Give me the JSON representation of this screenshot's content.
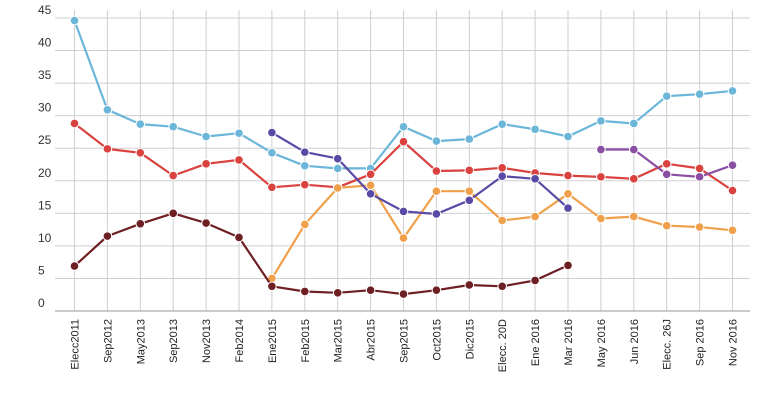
{
  "chart_data": {
    "type": "line",
    "title": "",
    "xlabel": "",
    "ylabel": "",
    "ylim": [
      0,
      45
    ],
    "yticks": [
      0,
      5,
      10,
      15,
      20,
      25,
      30,
      35,
      40,
      45
    ],
    "grid": true,
    "legend": "none",
    "categories": [
      "Elecc2011",
      "Sep2012",
      "May2013",
      "Sep2013",
      "Nov2013",
      "Feb2014",
      "Ene2015",
      "Feb2015",
      "Mar2015",
      "Abr2015",
      "Sep2015",
      "Oct2015",
      "Dic2015",
      "Elecc. 20D",
      "Ene 2016",
      "Mar 2016",
      "May 2016",
      "Jun 2016",
      "Elecc. 26J",
      "Sep 2016",
      "Nov 2016"
    ],
    "series": [
      {
        "color": "#6bb6d9",
        "values": [
          44.6,
          30.9,
          28.7,
          28.3,
          26.8,
          27.3,
          24.3,
          22.3,
          21.9,
          21.9,
          28.3,
          26.1,
          26.4,
          28.7,
          27.9,
          26.8,
          29.2,
          28.8,
          33,
          33.3,
          33.8
        ]
      },
      {
        "color": "#d9423f",
        "values": [
          28.8,
          24.9,
          24.3,
          20.8,
          22.6,
          23.2,
          19,
          19.4,
          19,
          21,
          26,
          21.5,
          21.6,
          22,
          21.2,
          20.8,
          20.6,
          20.3,
          22.6,
          21.9,
          18.5
        ]
      },
      {
        "color": "#f0a04b",
        "values": [
          null,
          null,
          null,
          null,
          null,
          null,
          5,
          13.3,
          18.9,
          19.3,
          11.2,
          18.4,
          18.4,
          13.9,
          14.5,
          18,
          14.2,
          14.5,
          13.1,
          12.9,
          12.4
        ]
      },
      {
        "color": "#5a4aa6",
        "values": [
          null,
          null,
          null,
          null,
          null,
          null,
          27.4,
          24.4,
          23.4,
          18,
          15.3,
          14.9,
          17,
          20.7,
          20.3,
          15.8,
          null,
          null,
          null,
          null,
          null
        ]
      },
      {
        "color": "#8a4ea3",
        "values": [
          null,
          null,
          null,
          null,
          null,
          null,
          null,
          null,
          null,
          null,
          null,
          null,
          null,
          null,
          null,
          null,
          24.8,
          24.8,
          21,
          20.6,
          22.4
        ]
      },
      {
        "color": "#6e1f24",
        "values": [
          6.9,
          11.5,
          13.4,
          15,
          13.5,
          11.3,
          3.8,
          3,
          2.8,
          3.2,
          2.6,
          3.2,
          4,
          3.8,
          4.7,
          7,
          null,
          null,
          null,
          null,
          null
        ]
      }
    ]
  }
}
